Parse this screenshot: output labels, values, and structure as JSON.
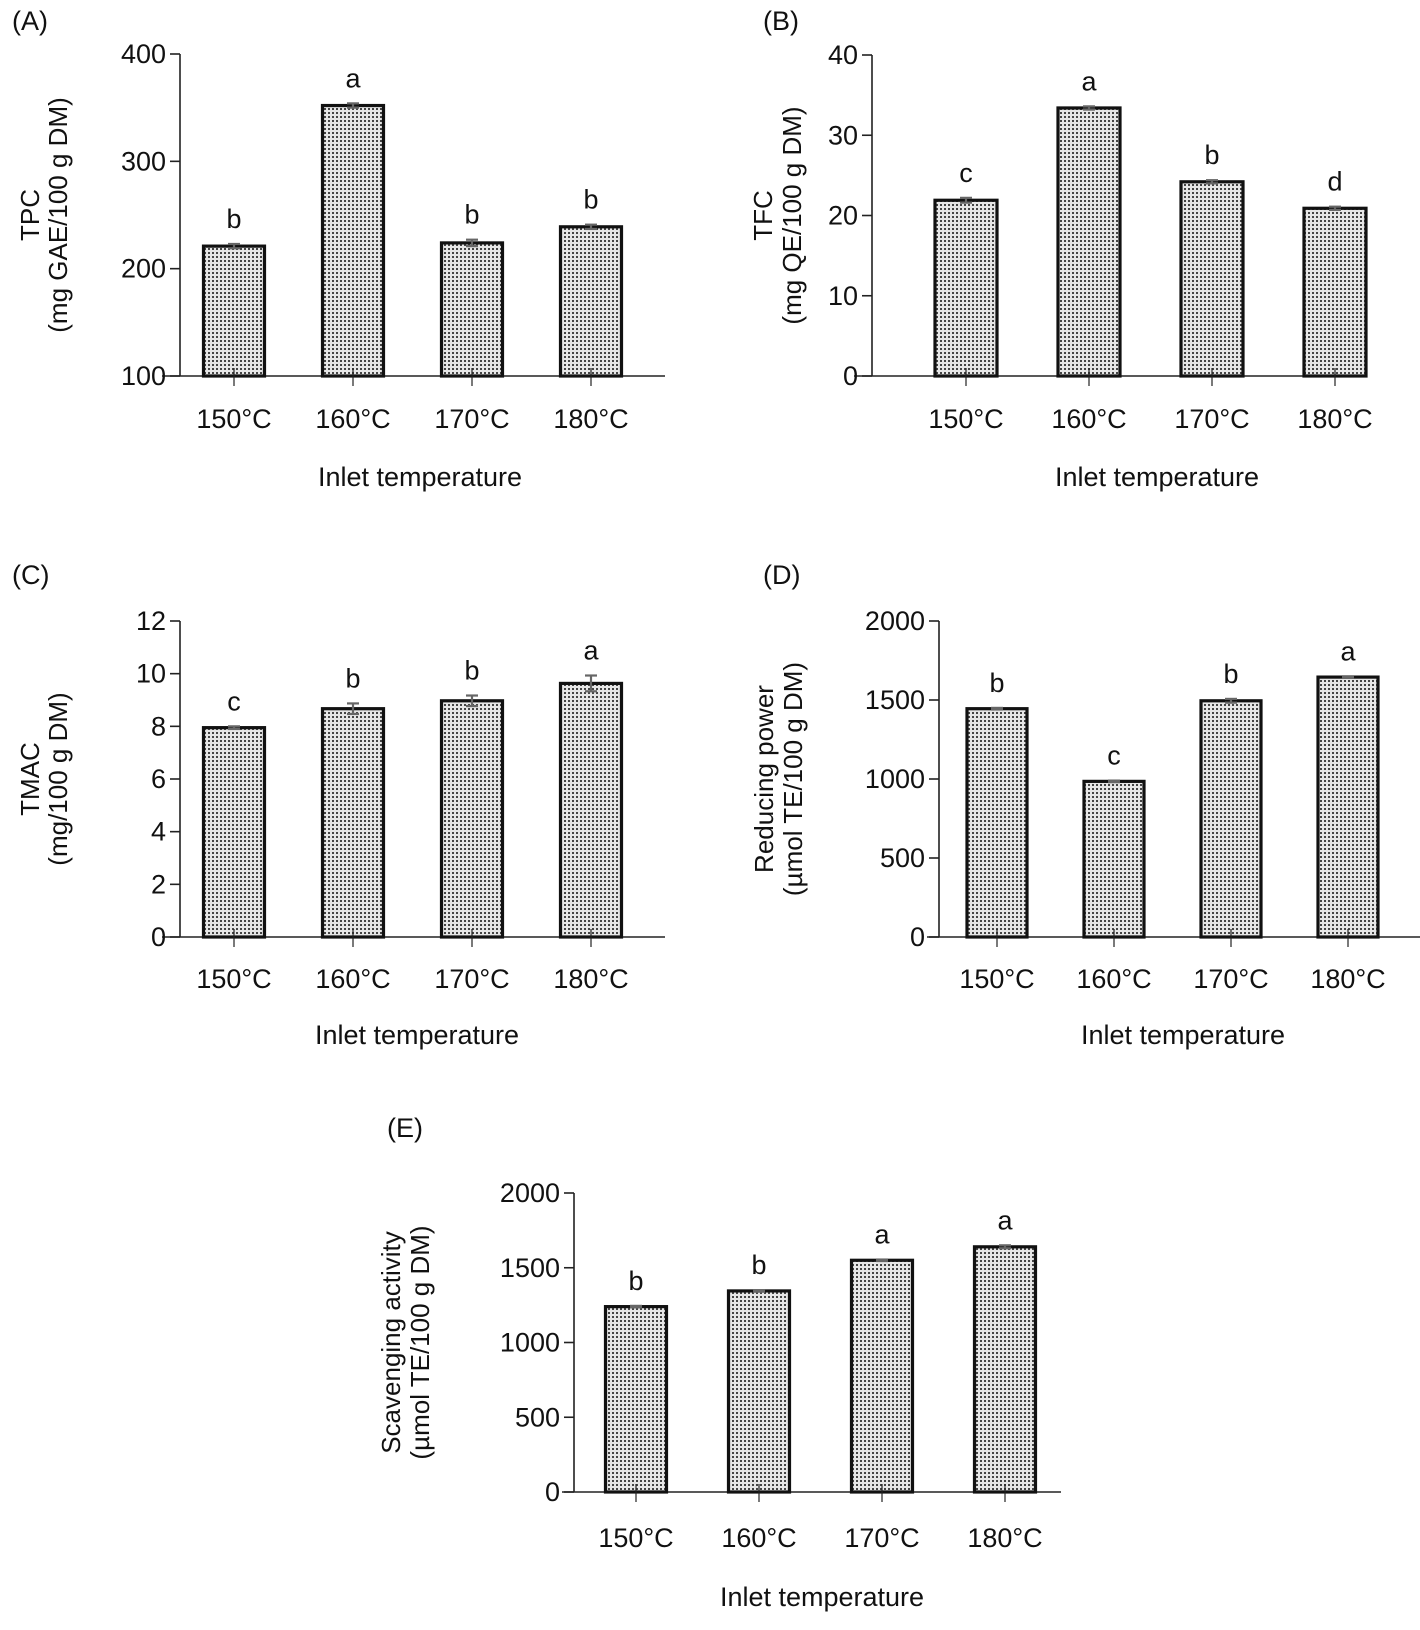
{
  "figure": {
    "fill_color": "#e6e6e6",
    "dot_color": "#444444",
    "error_bar_color": "#666666"
  },
  "chart_data": [
    {
      "panel": "(A)",
      "type": "bar",
      "title": "",
      "categories": [
        "150°C",
        "160°C",
        "170°C",
        "180°C"
      ],
      "values": [
        221,
        352,
        224,
        239
      ],
      "errors": [
        2,
        2,
        3,
        2
      ],
      "significance": [
        "b",
        "a",
        "b",
        "b"
      ],
      "xlabel": "Inlet temperature",
      "ylabel": [
        "TPC",
        "(mg GAE/100 g DM)"
      ],
      "ylim": [
        100,
        400
      ],
      "yticks": [
        100,
        200,
        300,
        400
      ],
      "grid": false
    },
    {
      "panel": "(B)",
      "type": "bar",
      "title": "",
      "categories": [
        "150°C",
        "160°C",
        "170°C",
        "180°C"
      ],
      "values": [
        21.9,
        33.4,
        24.2,
        20.9
      ],
      "errors": [
        0.3,
        0.2,
        0.2,
        0.2
      ],
      "significance": [
        "c",
        "a",
        "b",
        "d"
      ],
      "xlabel": "Inlet temperature",
      "ylabel": [
        "TFC",
        "(mg QE/100 g DM)"
      ],
      "ylim": [
        0,
        40
      ],
      "yticks": [
        0,
        10,
        20,
        30,
        40
      ],
      "grid": false
    },
    {
      "panel": "(C)",
      "type": "bar",
      "title": "",
      "categories": [
        "150°C",
        "160°C",
        "170°C",
        "180°C"
      ],
      "values": [
        7.95,
        8.67,
        8.97,
        9.63
      ],
      "errors": [
        0.05,
        0.2,
        0.2,
        0.3
      ],
      "significance": [
        "c",
        "b",
        "b",
        "a"
      ],
      "xlabel": "Inlet temperature",
      "ylabel": [
        "TMAC",
        "(mg/100 g DM)"
      ],
      "ylim": [
        0,
        12
      ],
      "yticks": [
        0,
        2,
        4,
        6,
        8,
        10,
        12
      ],
      "grid": false
    },
    {
      "panel": "(D)",
      "type": "bar",
      "title": "",
      "categories": [
        "150°C",
        "160°C",
        "170°C",
        "180°C"
      ],
      "values": [
        1445,
        985,
        1495,
        1645
      ],
      "errors": [
        5,
        5,
        12,
        5
      ],
      "significance": [
        "b",
        "c",
        "b",
        "a"
      ],
      "xlabel": "Inlet temperature",
      "ylabel": [
        "Reducing power",
        "(µmol TE/100 g DM)"
      ],
      "ylim": [
        0,
        2000
      ],
      "yticks": [
        0,
        500,
        1000,
        1500,
        2000
      ],
      "grid": false
    },
    {
      "panel": "(E)",
      "type": "bar",
      "title": "",
      "categories": [
        "150°C",
        "160°C",
        "170°C",
        "180°C"
      ],
      "values": [
        1240,
        1345,
        1550,
        1640
      ],
      "errors": [
        5,
        5,
        5,
        10
      ],
      "significance": [
        "b",
        "b",
        "a",
        "a"
      ],
      "xlabel": "Inlet temperature",
      "ylabel": [
        "Scavenging activity",
        "(µmol TE/100 g DM)"
      ],
      "ylim": [
        0,
        2000
      ],
      "yticks": [
        0,
        500,
        1000,
        1500,
        2000
      ],
      "grid": false
    }
  ]
}
